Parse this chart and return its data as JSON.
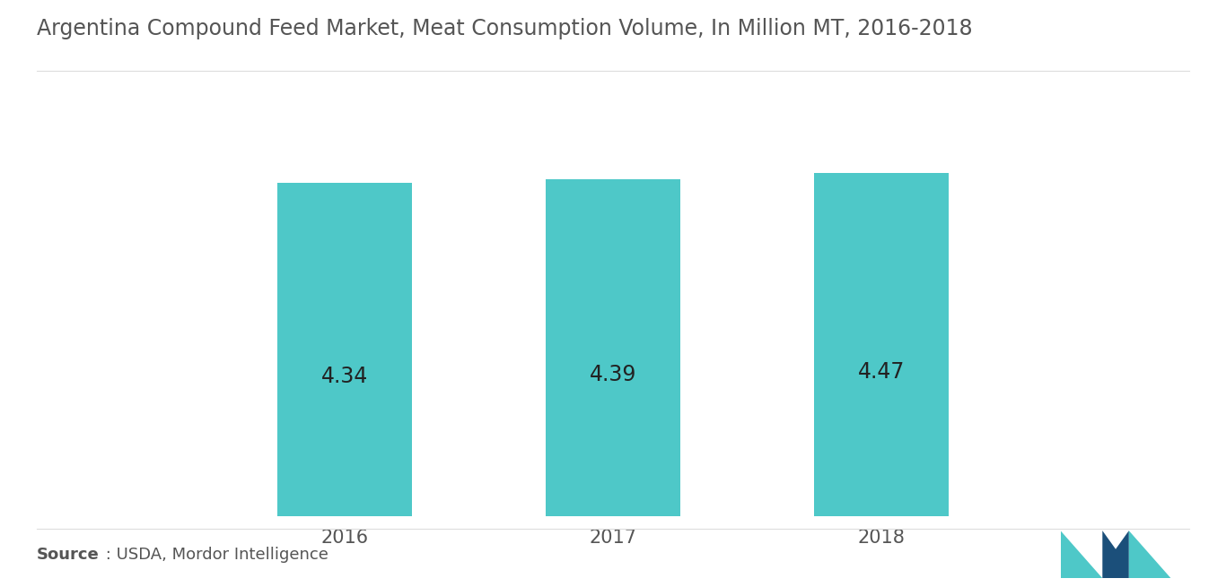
{
  "title": "Argentina Compound Feed Market, Meat Consumption Volume, In Million MT, 2016-2018",
  "categories": [
    "2016",
    "2017",
    "2018"
  ],
  "values": [
    4.34,
    4.39,
    4.47
  ],
  "bar_color": "#4EC8C8",
  "label_color": "#222222",
  "title_color": "#555555",
  "background_color": "#ffffff",
  "ylim": [
    0,
    5.5
  ],
  "bar_width": 0.5,
  "label_fontsize": 17,
  "title_fontsize": 17,
  "tick_fontsize": 15,
  "source_bold": "Source",
  "source_rest": " : USDA, Mordor Intelligence"
}
